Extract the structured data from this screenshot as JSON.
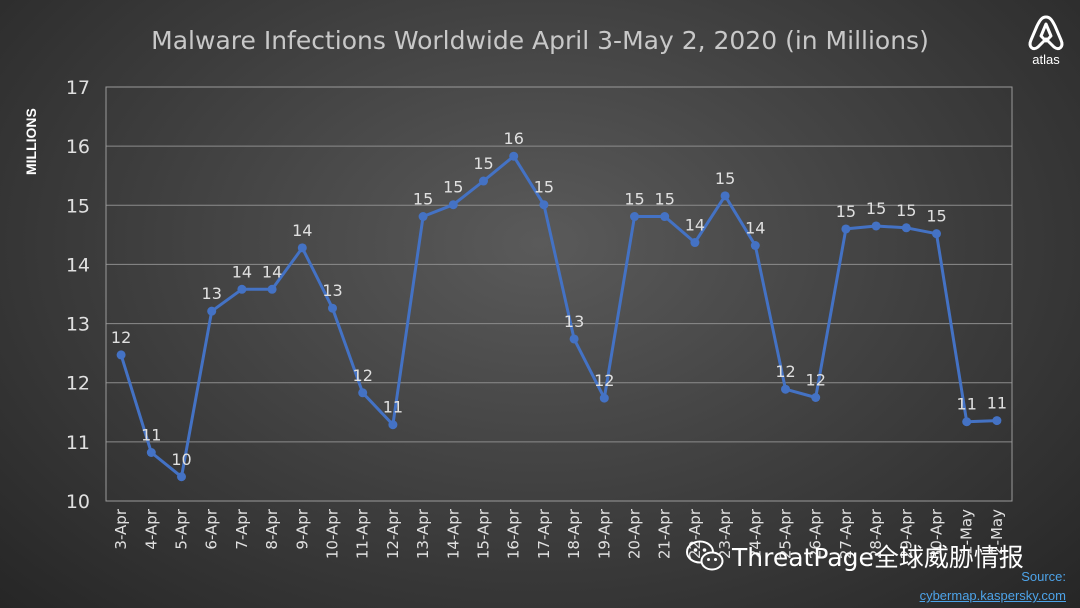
{
  "header": {
    "logo_icon": "atlas-logo-icon",
    "logo_text": "atlas"
  },
  "watermark": {
    "icon": "wechat-icon",
    "text": "ThreatPage全球威胁情报"
  },
  "source": {
    "label": "Source:",
    "url": "cybermap.kaspersky.com"
  },
  "colors": {
    "line": "#4472c4",
    "title": "#c8c8c8",
    "label": "#e0e0e0",
    "source": "#4da3e8"
  },
  "chart_data": {
    "type": "line",
    "title": "Malware Infections Worldwide April 3-May 2, 2020 (in Millions)",
    "xlabel": "",
    "ylabel": "MILLIONS",
    "ylim": [
      10,
      17
    ],
    "yticks": [
      "10",
      "11",
      "12",
      "13",
      "14",
      "15",
      "16",
      "17"
    ],
    "grid": true,
    "legend": "none",
    "categories": [
      "3-Apr",
      "4-Apr",
      "5-Apr",
      "6-Apr",
      "7-Apr",
      "8-Apr",
      "9-Apr",
      "10-Apr",
      "11-Apr",
      "12-Apr",
      "13-Apr",
      "14-Apr",
      "15-Apr",
      "16-Apr",
      "17-Apr",
      "18-Apr",
      "19-Apr",
      "20-Apr",
      "21-Apr",
      "22-Apr",
      "23-Apr",
      "24-Apr",
      "25-Apr",
      "26-Apr",
      "27-Apr",
      "28-Apr",
      "29-Apr",
      "30-Apr",
      "1-May",
      "2-May"
    ],
    "values": [
      12.47,
      10.82,
      10.41,
      13.21,
      13.58,
      13.58,
      14.28,
      13.26,
      11.83,
      11.29,
      14.81,
      15.01,
      15.41,
      15.83,
      15.01,
      12.74,
      11.74,
      14.81,
      14.81,
      14.37,
      15.16,
      14.32,
      11.89,
      11.75,
      14.6,
      14.65,
      14.62,
      14.52,
      11.34,
      11.36
    ],
    "data_labels": [
      "12",
      "11",
      "10",
      "13",
      "14",
      "14",
      "14",
      "13",
      "12",
      "11",
      "15",
      "15",
      "15",
      "16",
      "15",
      "13",
      "12",
      "15",
      "15",
      "14",
      "15",
      "14",
      "12",
      "12",
      "15",
      "15",
      "15",
      "15",
      "11",
      "11"
    ]
  }
}
